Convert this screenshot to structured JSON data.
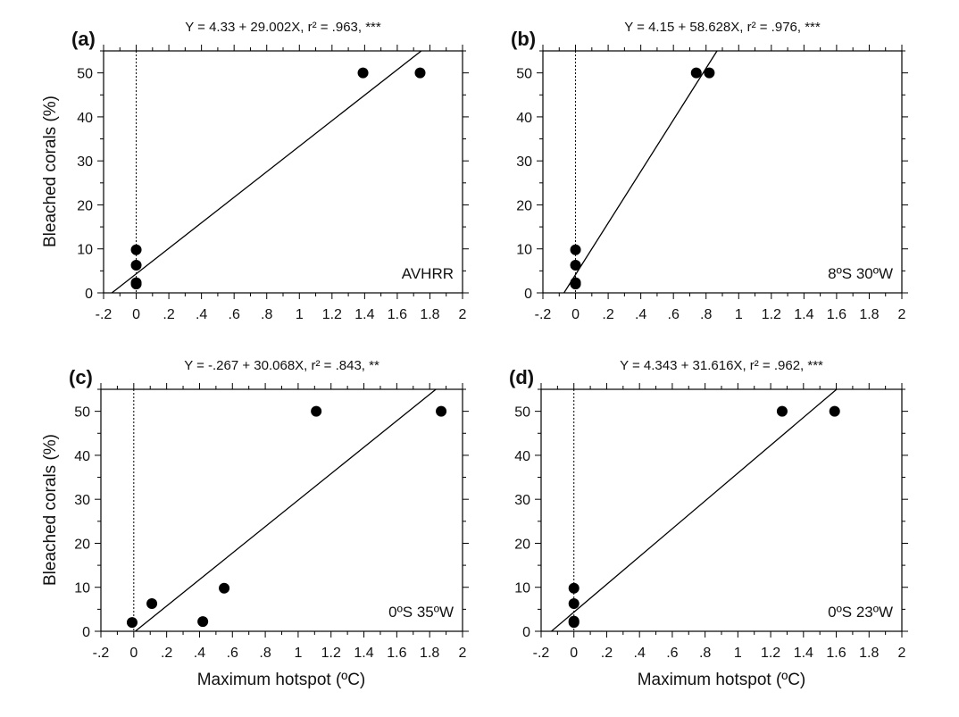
{
  "figure": {
    "xlabel": "Maximum hotspot (ºC)",
    "ylabel": "Bleached corals (%)"
  },
  "chart_data": [
    {
      "type": "scatter",
      "panel": "(a)",
      "title": "Y = 4.33 + 29.002X, r² = .963, ***",
      "annotation": "AVHRR",
      "xlabel": "",
      "ylabel": "Bleached corals (%)",
      "xlim": [
        -0.2,
        2
      ],
      "ylim": [
        0,
        55
      ],
      "xticks": [
        -0.2,
        0,
        0.2,
        0.4,
        0.6,
        0.8,
        1,
        1.2,
        1.4,
        1.6,
        1.8,
        2
      ],
      "xtick_labels": [
        "-.2",
        "0",
        ".2",
        ".4",
        ".6",
        ".8",
        "1",
        "1.2",
        "1.4",
        "1.6",
        "1.8",
        "2"
      ],
      "yticks": [
        0,
        10,
        20,
        30,
        40,
        50
      ],
      "ytick_labels": [
        "0",
        "10",
        "20",
        "30",
        "40",
        "50"
      ],
      "points": [
        [
          0,
          2
        ],
        [
          0,
          2.3
        ],
        [
          0,
          6.3
        ],
        [
          0,
          9.8
        ],
        [
          1.39,
          50
        ],
        [
          1.74,
          50
        ]
      ],
      "fit": {
        "intercept": 4.33,
        "slope": 29.002
      }
    },
    {
      "type": "scatter",
      "panel": "(b)",
      "title": "Y = 4.15 + 58.628X, r² = .976, ***",
      "annotation": "8ºS 30ºW",
      "xlabel": "",
      "ylabel": "",
      "xlim": [
        -0.2,
        2
      ],
      "ylim": [
        0,
        55
      ],
      "xticks": [
        -0.2,
        0,
        0.2,
        0.4,
        0.6,
        0.8,
        1,
        1.2,
        1.4,
        1.6,
        1.8,
        2
      ],
      "xtick_labels": [
        "-.2",
        "0",
        ".2",
        ".4",
        ".6",
        ".8",
        "1",
        "1.2",
        "1.4",
        "1.6",
        "1.8",
        "2"
      ],
      "yticks": [
        0,
        10,
        20,
        30,
        40,
        50
      ],
      "ytick_labels": [
        "0",
        "10",
        "20",
        "30",
        "40",
        "50"
      ],
      "points": [
        [
          0,
          2
        ],
        [
          0,
          2.3
        ],
        [
          0,
          6.3
        ],
        [
          0,
          9.8
        ],
        [
          0.74,
          50
        ],
        [
          0.82,
          50
        ]
      ],
      "fit": {
        "intercept": 4.15,
        "slope": 58.628
      }
    },
    {
      "type": "scatter",
      "panel": "(c)",
      "title": "Y = -.267 + 30.068X, r² = .843, **",
      "annotation": "0ºS 35ºW",
      "xlabel": "Maximum hotspot (ºC)",
      "ylabel": "Bleached corals (%)",
      "xlim": [
        -0.2,
        2
      ],
      "ylim": [
        0,
        55
      ],
      "xticks": [
        -0.2,
        0,
        0.2,
        0.4,
        0.6,
        0.8,
        1,
        1.2,
        1.4,
        1.6,
        1.8,
        2
      ],
      "xtick_labels": [
        "-.2",
        "0",
        ".2",
        ".4",
        ".6",
        ".8",
        "1",
        "1.2",
        "1.4",
        "1.6",
        "1.8",
        "2"
      ],
      "yticks": [
        0,
        10,
        20,
        30,
        40,
        50
      ],
      "ytick_labels": [
        "0",
        "10",
        "20",
        "30",
        "40",
        "50"
      ],
      "points": [
        [
          -0.01,
          2
        ],
        [
          0.11,
          6.3
        ],
        [
          0.42,
          2.2
        ],
        [
          0.55,
          9.8
        ],
        [
          1.11,
          50
        ],
        [
          1.87,
          50
        ]
      ],
      "fit": {
        "intercept": -0.267,
        "slope": 30.068
      }
    },
    {
      "type": "scatter",
      "panel": "(d)",
      "title": "Y = 4.343 + 31.616X, r² = .962, ***",
      "annotation": "0ºS 23ºW",
      "xlabel": "Maximum hotspot (ºC)",
      "ylabel": "",
      "xlim": [
        -0.2,
        2
      ],
      "ylim": [
        0,
        55
      ],
      "xticks": [
        -0.2,
        0,
        0.2,
        0.4,
        0.6,
        0.8,
        1,
        1.2,
        1.4,
        1.6,
        1.8,
        2
      ],
      "xtick_labels": [
        "-.2",
        "0",
        ".2",
        ".4",
        ".6",
        ".8",
        "1",
        "1.2",
        "1.4",
        "1.6",
        "1.8",
        "2"
      ],
      "yticks": [
        0,
        10,
        20,
        30,
        40,
        50
      ],
      "ytick_labels": [
        "0",
        "10",
        "20",
        "30",
        "40",
        "50"
      ],
      "points": [
        [
          0,
          2
        ],
        [
          0,
          2.3
        ],
        [
          0,
          6.3
        ],
        [
          0,
          9.8
        ],
        [
          1.27,
          50
        ],
        [
          1.59,
          50
        ]
      ],
      "fit": {
        "intercept": 4.343,
        "slope": 31.616
      }
    }
  ]
}
